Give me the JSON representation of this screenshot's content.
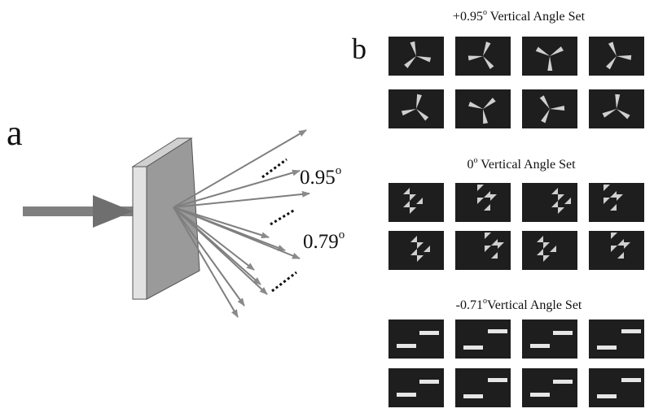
{
  "panel_a": {
    "label": "a",
    "angle_upper": "0.95",
    "angle_lower": "0.79",
    "degree_mark": "o"
  },
  "panel_b": {
    "label": "b",
    "sets": [
      {
        "title_value": "+0.95",
        "degree_mark": "o",
        "title_text": " Vertical Angle Set",
        "pattern": "tripod"
      },
      {
        "title_value": "0",
        "degree_mark": "o",
        "title_text": " Vertical Angle Set",
        "pattern": "triangles"
      },
      {
        "title_value": "-0.71",
        "degree_mark": "o",
        "title_text": "Vertical Angle Set",
        "pattern": "bars"
      }
    ]
  },
  "colors": {
    "background": "#ffffff",
    "ink": "#111111",
    "arrow": "#7f7f7f",
    "plate_face": "#9a9a9a",
    "plate_edge": "#e2e2e2",
    "tile": "#1e1e1e",
    "shape": "#cfcfcf"
  }
}
